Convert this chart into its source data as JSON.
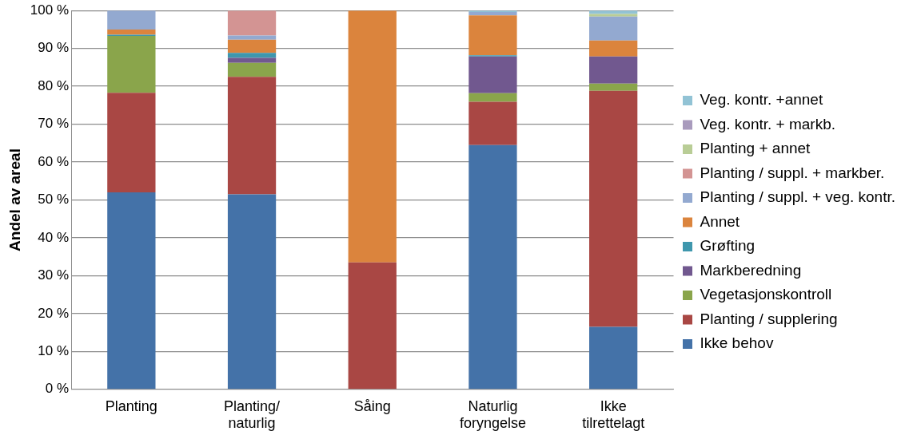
{
  "chart_data": {
    "type": "bar",
    "stacked": true,
    "ylabel": "Andel av areal",
    "categories": [
      "Planting",
      "Planting/\nnaturlig",
      "Såing",
      "Naturlig\nforyngelse",
      "Ikke\ntilrettelagt"
    ],
    "series": [
      {
        "name": "Ikke behov",
        "color": "#4472a8",
        "values": [
          52,
          51.5,
          0,
          64.5,
          16.5
        ]
      },
      {
        "name": "Planting / supplering",
        "color": "#a94744",
        "values": [
          26.3,
          31,
          33.5,
          11.4,
          62.3
        ]
      },
      {
        "name": "Vegetasjonskontroll",
        "color": "#8aa54b",
        "values": [
          15,
          3.7,
          0,
          2.3,
          1.9
        ]
      },
      {
        "name": "Markberedning",
        "color": "#71588f",
        "values": [
          0,
          1.3,
          0,
          9.7,
          7.2
        ]
      },
      {
        "name": "Grøfting",
        "color": "#3f97ad",
        "values": [
          0.3,
          1.3,
          0,
          0.3,
          0
        ]
      },
      {
        "name": "Annet",
        "color": "#db843d",
        "values": [
          1.4,
          3.5,
          66.5,
          10.5,
          4.2
        ]
      },
      {
        "name": "Planting / suppl. + veg. kontr.",
        "color": "#93a9d0",
        "values": [
          5,
          1.1,
          0,
          0.9,
          6.3
        ]
      },
      {
        "name": "Planting / suppl. + markber.",
        "color": "#d39493",
        "values": [
          0,
          6.6,
          0,
          0,
          0
        ]
      },
      {
        "name": "Planting + annet",
        "color": "#b9cd96",
        "values": [
          0,
          0,
          0,
          0,
          0.7
        ]
      },
      {
        "name": "Veg. kontr. + markb.",
        "color": "#a99bbd",
        "values": [
          0,
          0,
          0,
          0,
          0
        ]
      },
      {
        "name": "Veg. kontr. +annet",
        "color": "#92c3d5",
        "values": [
          0,
          0,
          0,
          0.4,
          0.9
        ]
      }
    ],
    "ylim": [
      0,
      100
    ],
    "yticks": [
      {
        "value": 0,
        "label": "0 %"
      },
      {
        "value": 10,
        "label": "10 %"
      },
      {
        "value": 20,
        "label": "20 %"
      },
      {
        "value": 30,
        "label": "30 %"
      },
      {
        "value": 40,
        "label": "40 %"
      },
      {
        "value": 50,
        "label": "50 %"
      },
      {
        "value": 60,
        "label": "60 %"
      },
      {
        "value": 70,
        "label": "70 %"
      },
      {
        "value": 80,
        "label": "80 %"
      },
      {
        "value": 90,
        "label": "90 %"
      },
      {
        "value": 100,
        "label": "100 %"
      }
    ],
    "grid": "y",
    "legend": "right"
  }
}
